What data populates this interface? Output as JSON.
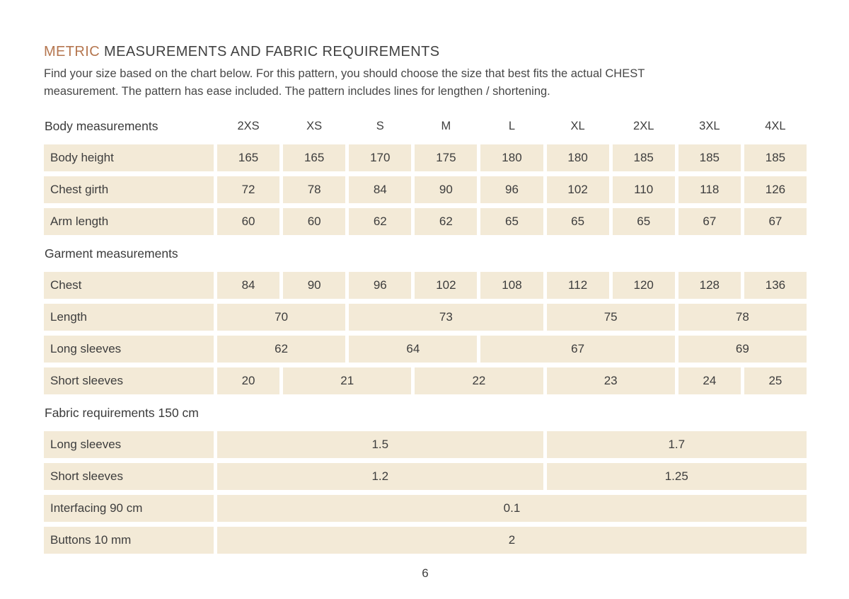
{
  "page": {
    "title_accent": "METRIC",
    "title_rest": " MEASUREMENTS AND FABRIC REQUIREMENTS",
    "intro_lines": [
      "Find your size based on the chart below. For this pattern, you should choose the size that best fits the actual CHEST",
      "measurement. The pattern has ease included. The pattern includes lines for lengthen / shortening."
    ],
    "page_number": "6"
  },
  "colors": {
    "accent": "#b5764f",
    "cell_background": "#f3ead7",
    "text": "#3d3d3d"
  },
  "table": {
    "size_header_label": "Body measurements",
    "sizes": [
      "2XS",
      "XS",
      "S",
      "M",
      "L",
      "XL",
      "2XL",
      "3XL",
      "4XL"
    ],
    "sections": [
      {
        "heading": null,
        "rows": [
          {
            "label": "Body height",
            "cells": [
              {
                "v": "165",
                "span": 1
              },
              {
                "v": "165",
                "span": 1
              },
              {
                "v": "170",
                "span": 1
              },
              {
                "v": "175",
                "span": 1
              },
              {
                "v": "180",
                "span": 1
              },
              {
                "v": "180",
                "span": 1
              },
              {
                "v": "185",
                "span": 1
              },
              {
                "v": "185",
                "span": 1
              },
              {
                "v": "185",
                "span": 1
              }
            ]
          },
          {
            "label": "Chest girth",
            "cells": [
              {
                "v": "72",
                "span": 1
              },
              {
                "v": "78",
                "span": 1
              },
              {
                "v": "84",
                "span": 1
              },
              {
                "v": "90",
                "span": 1
              },
              {
                "v": "96",
                "span": 1
              },
              {
                "v": "102",
                "span": 1
              },
              {
                "v": "110",
                "span": 1
              },
              {
                "v": "118",
                "span": 1
              },
              {
                "v": "126",
                "span": 1
              }
            ]
          },
          {
            "label": "Arm length",
            "cells": [
              {
                "v": "60",
                "span": 1
              },
              {
                "v": "60",
                "span": 1
              },
              {
                "v": "62",
                "span": 1
              },
              {
                "v": "62",
                "span": 1
              },
              {
                "v": "65",
                "span": 1
              },
              {
                "v": "65",
                "span": 1
              },
              {
                "v": "65",
                "span": 1
              },
              {
                "v": "67",
                "span": 1
              },
              {
                "v": "67",
                "span": 1
              }
            ]
          }
        ]
      },
      {
        "heading": "Garment measurements",
        "rows": [
          {
            "label": "Chest",
            "cells": [
              {
                "v": "84",
                "span": 1
              },
              {
                "v": "90",
                "span": 1
              },
              {
                "v": "96",
                "span": 1
              },
              {
                "v": "102",
                "span": 1
              },
              {
                "v": "108",
                "span": 1
              },
              {
                "v": "112",
                "span": 1
              },
              {
                "v": "120",
                "span": 1
              },
              {
                "v": "128",
                "span": 1
              },
              {
                "v": "136",
                "span": 1
              }
            ]
          },
          {
            "label": "Length",
            "cells": [
              {
                "v": "70",
                "span": 2
              },
              {
                "v": "73",
                "span": 3
              },
              {
                "v": "75",
                "span": 2
              },
              {
                "v": "78",
                "span": 2
              }
            ]
          },
          {
            "label": "Long sleeves",
            "cells": [
              {
                "v": "62",
                "span": 2
              },
              {
                "v": "64",
                "span": 2
              },
              {
                "v": "67",
                "span": 3
              },
              {
                "v": "69",
                "span": 2
              }
            ]
          },
          {
            "label": "Short sleeves",
            "cells": [
              {
                "v": "20",
                "span": 1
              },
              {
                "v": "21",
                "span": 2
              },
              {
                "v": "22",
                "span": 2
              },
              {
                "v": "23",
                "span": 2
              },
              {
                "v": "24",
                "span": 1
              },
              {
                "v": "25",
                "span": 1
              }
            ]
          }
        ]
      },
      {
        "heading": "Fabric requirements 150 cm",
        "rows": [
          {
            "label": "Long sleeves",
            "cells": [
              {
                "v": "1.5",
                "span": 5
              },
              {
                "v": "1.7",
                "span": 4
              }
            ]
          },
          {
            "label": "Short sleeves",
            "cells": [
              {
                "v": "1.2",
                "span": 5
              },
              {
                "v": "1.25",
                "span": 4
              }
            ]
          },
          {
            "label": "Interfacing 90 cm",
            "cells": [
              {
                "v": "0.1",
                "span": 9
              }
            ]
          },
          {
            "label": "Buttons 10 mm",
            "cells": [
              {
                "v": "2",
                "span": 9
              }
            ]
          }
        ]
      }
    ]
  }
}
